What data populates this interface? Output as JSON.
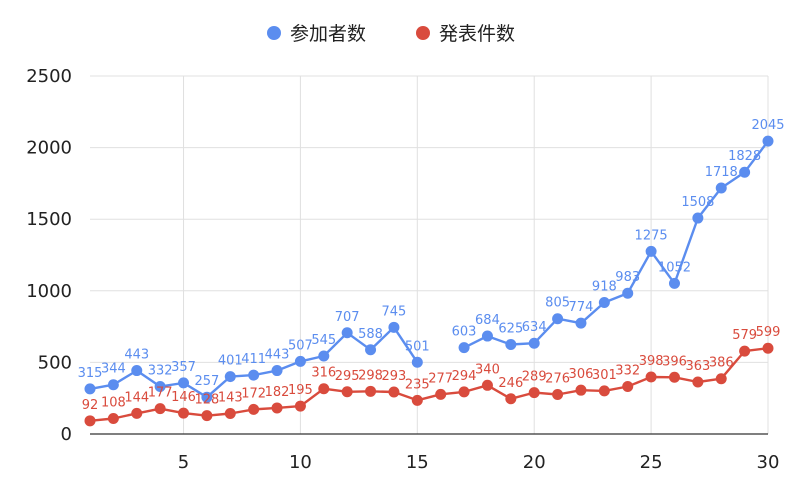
{
  "chart_data": {
    "type": "line",
    "x": [
      1,
      2,
      3,
      4,
      5,
      6,
      7,
      8,
      9,
      10,
      11,
      12,
      13,
      14,
      15,
      16,
      17,
      18,
      19,
      20,
      21,
      22,
      23,
      24,
      25,
      26,
      27,
      28,
      29,
      30
    ],
    "series": [
      {
        "name": "参加者数",
        "color": "#5b8def",
        "values": [
          315,
          344,
          443,
          332,
          357,
          257,
          401,
          411,
          443,
          507,
          545,
          707,
          588,
          745,
          501,
          null,
          603,
          684,
          625,
          634,
          805,
          774,
          918,
          983,
          1275,
          1052,
          1508,
          1718,
          1828,
          2045
        ]
      },
      {
        "name": "発表件数",
        "color": "#d94b3d",
        "values": [
          92,
          108,
          144,
          177,
          146,
          128,
          143,
          172,
          182,
          195,
          316,
          295,
          298,
          293,
          235,
          277,
          294,
          340,
          246,
          289,
          276,
          306,
          301,
          332,
          398,
          396,
          363,
          386,
          579,
          599
        ]
      }
    ],
    "xticks": [
      "5",
      "10",
      "15",
      "20",
      "25",
      "30"
    ],
    "yticks": [
      "0",
      "500",
      "1000",
      "1500",
      "2000",
      "2500"
    ],
    "xlim": [
      1,
      30
    ],
    "ylim": [
      0,
      2500
    ],
    "grid": true,
    "legend": "top-center"
  }
}
